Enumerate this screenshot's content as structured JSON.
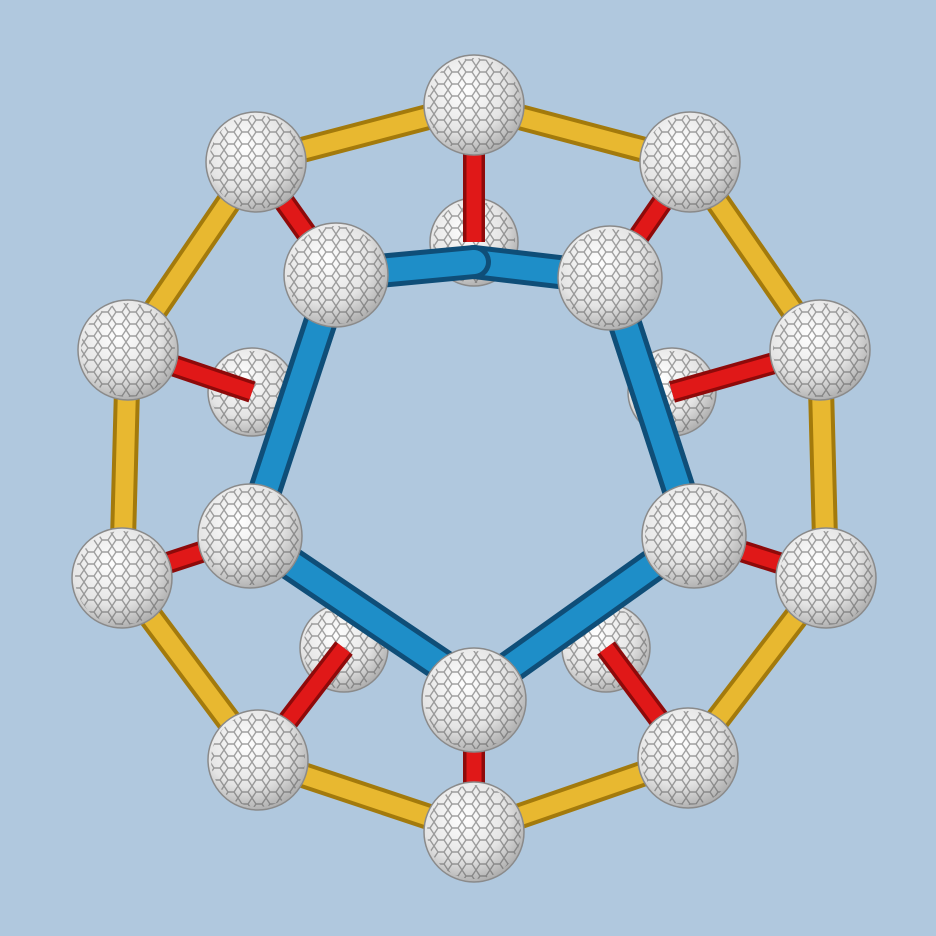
{
  "image": {
    "subject": "molecular-model",
    "background_color": "#b0c8de"
  },
  "model": {
    "outer_ring_color": "#e8b830",
    "spoke_color": "#e01818",
    "inner_ring_color": "#1e8ec8",
    "node_color": "#ffffff",
    "node_edge_color": "#8a8a8a"
  }
}
